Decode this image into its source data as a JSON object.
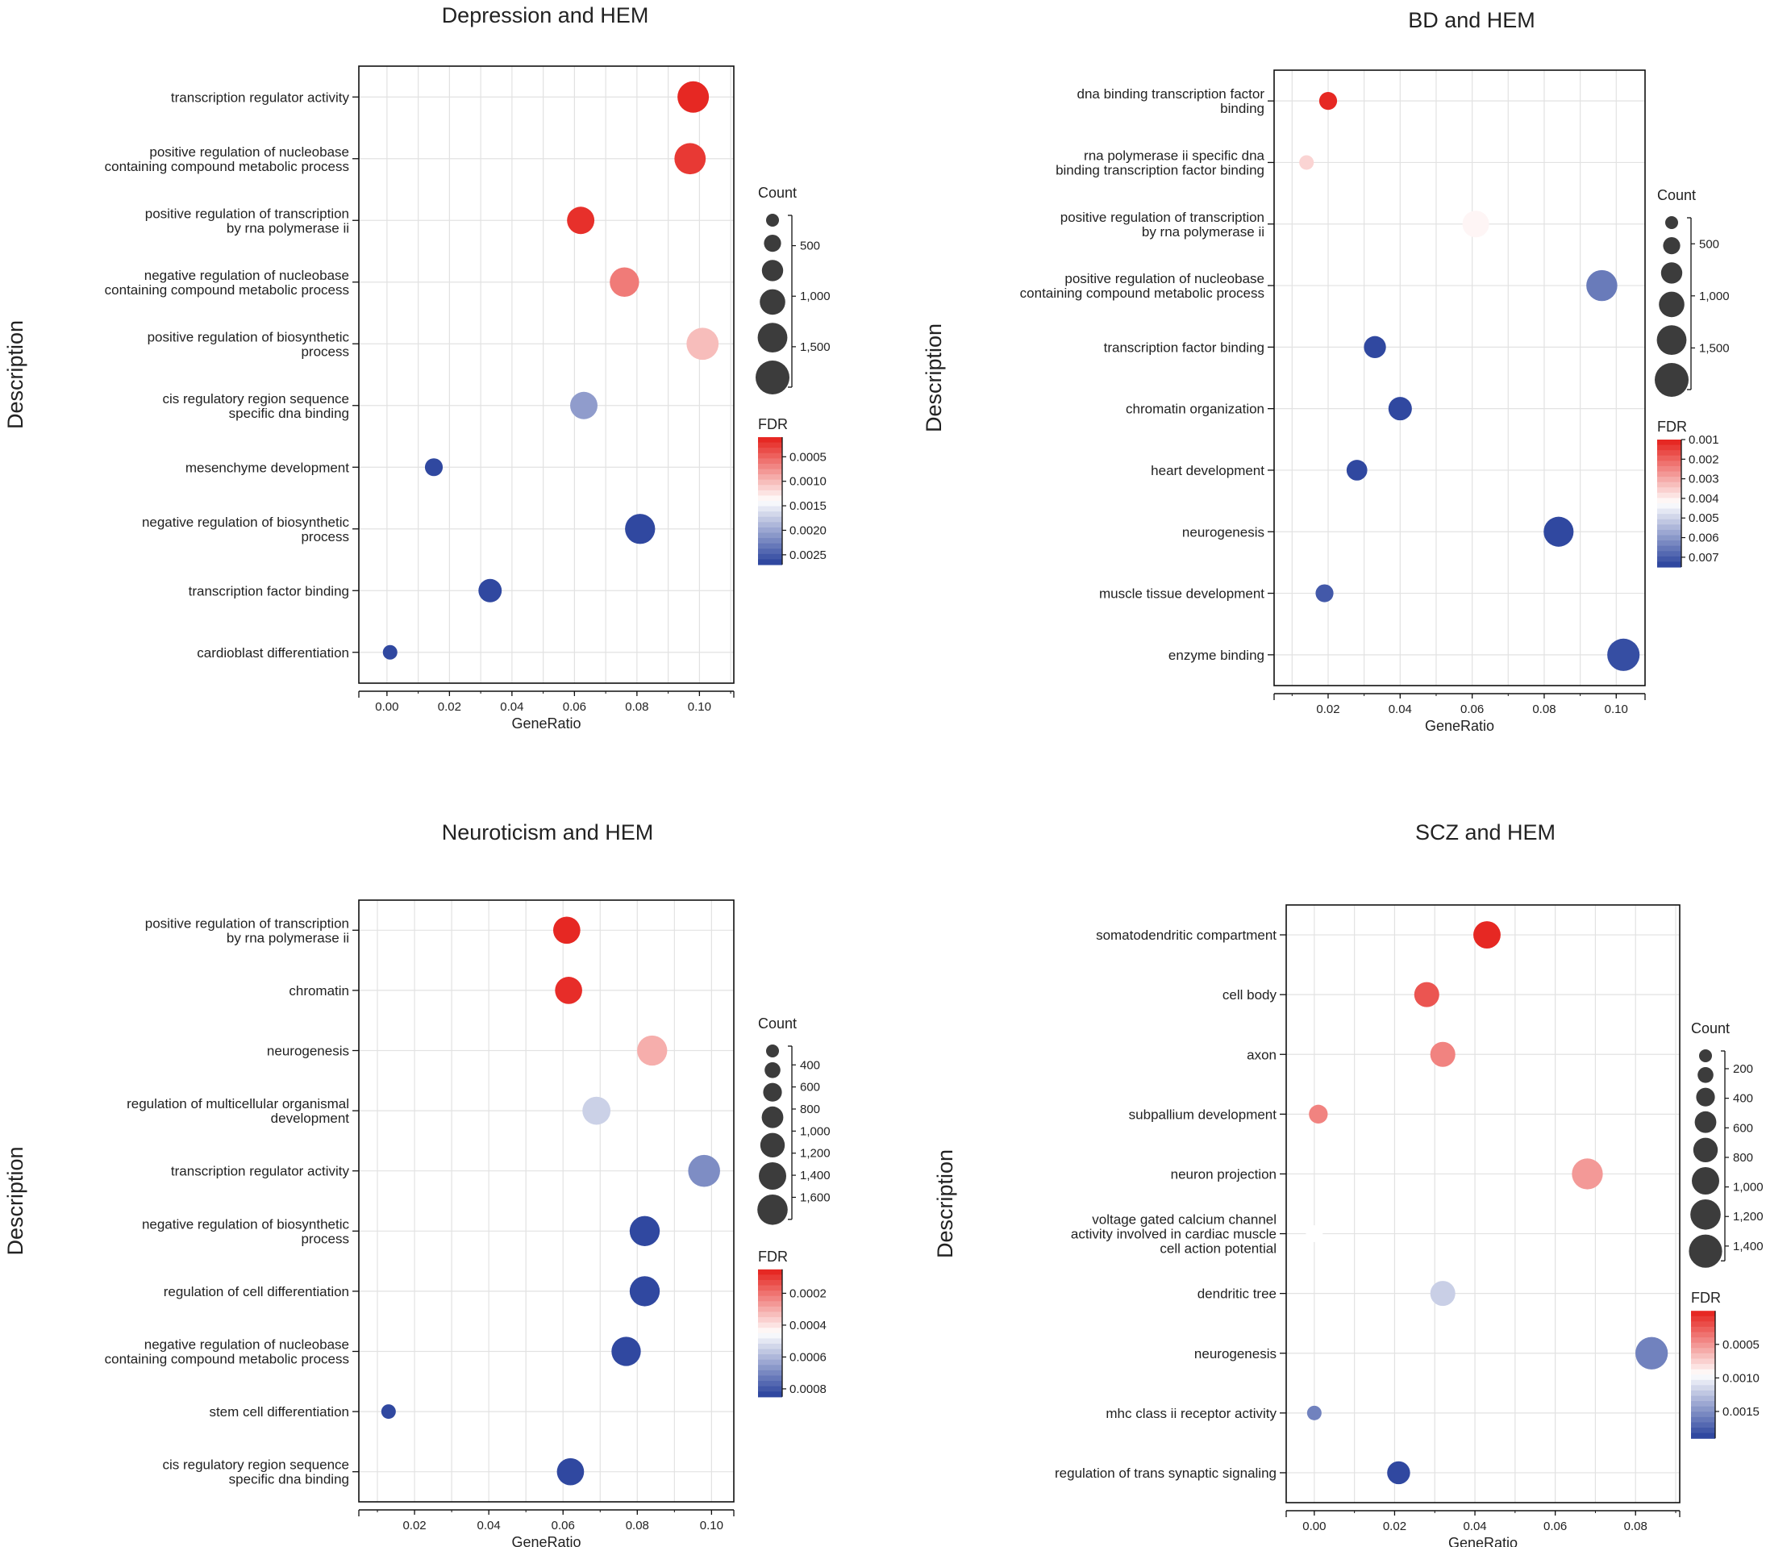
{
  "chart_data": [
    {
      "type": "scatter",
      "title": "Depression and HEM",
      "xlabel": "GeneRatio",
      "ylabel": "Description",
      "xlim": [
        -0.009,
        0.111
      ],
      "xticks": [
        0.0,
        0.02,
        0.04,
        0.06,
        0.08,
        0.1
      ],
      "xtick_labels": [
        "0.00",
        "0.02",
        "0.04",
        "0.06",
        "0.08",
        "0.10"
      ],
      "grid": true,
      "count_range": [
        200,
        1900
      ],
      "count_legend": {
        "title": "Count",
        "ticks": [
          500,
          1000,
          1500
        ],
        "labels": [
          "500",
          "1,000",
          "1,500"
        ],
        "dots": 6
      },
      "fdr_range": [
        0.0001,
        0.0027
      ],
      "fdr_legend": {
        "title": "FDR",
        "ticks": [
          0.0005,
          0.001,
          0.0015,
          0.002,
          0.0025
        ],
        "labels": [
          "0.0005",
          "0.0010",
          "0.0015",
          "0.0020",
          "0.0025"
        ]
      },
      "points": [
        {
          "label": [
            "transcription regulator activity"
          ],
          "x": 0.098,
          "count": 1500,
          "fdr": 0.0001
        },
        {
          "label": [
            "positive regulation of nucleobase",
            "containing compound metabolic process"
          ],
          "x": 0.097,
          "count": 1480,
          "fdr": 0.0002
        },
        {
          "label": [
            "positive regulation of transcription",
            "by rna polymerase ii"
          ],
          "x": 0.062,
          "count": 950,
          "fdr": 0.00015
        },
        {
          "label": [
            "negative regulation of nucleobase",
            "containing compound metabolic process"
          ],
          "x": 0.076,
          "count": 1200,
          "fdr": 0.0006
        },
        {
          "label": [
            "positive regulation of biosynthetic",
            "process"
          ],
          "x": 0.101,
          "count": 1600,
          "fdr": 0.001
        },
        {
          "label": [
            "cis regulatory region sequence",
            "specific dna binding"
          ],
          "x": 0.063,
          "count": 950,
          "fdr": 0.0021
        },
        {
          "label": [
            "mesenchyme development"
          ],
          "x": 0.015,
          "count": 250,
          "fdr": 0.0027
        },
        {
          "label": [
            "negative regulation of biosynthetic",
            "process"
          ],
          "x": 0.081,
          "count": 1300,
          "fdr": 0.0027
        },
        {
          "label": [
            "transcription factor binding"
          ],
          "x": 0.033,
          "count": 550,
          "fdr": 0.0027
        },
        {
          "label": [
            "cardioblast differentiation"
          ],
          "x": 0.001,
          "count": 200,
          "fdr": 0.0027
        }
      ]
    },
    {
      "type": "scatter",
      "title": "BD and HEM",
      "xlabel": "GeneRatio",
      "ylabel": "Description",
      "xlim": [
        0.005,
        0.108
      ],
      "xticks": [
        0.02,
        0.04,
        0.06,
        0.08,
        0.1
      ],
      "xtick_labels": [
        "0.02",
        "0.04",
        "0.06",
        "0.08",
        "0.10"
      ],
      "grid": true,
      "count_range": [
        250,
        1900
      ],
      "count_legend": {
        "title": "Count",
        "ticks": [
          500,
          1000,
          1500
        ],
        "labels": [
          "500",
          "1,000",
          "1,500"
        ],
        "dots": 6
      },
      "fdr_range": [
        0.001,
        0.0075
      ],
      "fdr_legend": {
        "title": "FDR",
        "ticks": [
          0.001,
          0.002,
          0.003,
          0.004,
          0.005,
          0.006,
          0.007
        ],
        "labels": [
          "0.001",
          "0.002",
          "0.003",
          "0.004",
          "0.005",
          "0.006",
          "0.007"
        ]
      },
      "points": [
        {
          "label": [
            "dna binding transcription factor",
            "binding"
          ],
          "x": 0.02,
          "count": 300,
          "fdr": 0.001
        },
        {
          "label": [
            "rna polymerase ii specific dna",
            "binding transcription factor binding"
          ],
          "x": 0.014,
          "count": 250,
          "fdr": 0.0036
        },
        {
          "label": [
            "positive regulation of transcription",
            "by rna polymerase ii"
          ],
          "x": 0.061,
          "count": 900,
          "fdr": 0.0041
        },
        {
          "label": [
            "positive regulation of nucleobase",
            "containing compound metabolic process"
          ],
          "x": 0.096,
          "count": 1450,
          "fdr": 0.0066
        },
        {
          "label": [
            "transcription factor binding"
          ],
          "x": 0.033,
          "count": 500,
          "fdr": 0.0075
        },
        {
          "label": [
            "chromatin organization"
          ],
          "x": 0.04,
          "count": 600,
          "fdr": 0.0075
        },
        {
          "label": [
            "heart development"
          ],
          "x": 0.028,
          "count": 420,
          "fdr": 0.0075
        },
        {
          "label": [
            "neurogenesis"
          ],
          "x": 0.084,
          "count": 1300,
          "fdr": 0.0075
        },
        {
          "label": [
            "muscle tissue development"
          ],
          "x": 0.019,
          "count": 300,
          "fdr": 0.0072
        },
        {
          "label": [
            "enzyme binding"
          ],
          "x": 0.102,
          "count": 1650,
          "fdr": 0.0074
        }
      ]
    },
    {
      "type": "scatter",
      "title": "Neuroticism and HEM",
      "xlabel": "GeneRatio",
      "ylabel": "Description",
      "xlim": [
        0.005,
        0.106
      ],
      "xticks": [
        0.02,
        0.04,
        0.06,
        0.08,
        0.1
      ],
      "xtick_labels": [
        "0.02",
        "0.04",
        "0.06",
        "0.08",
        "0.10"
      ],
      "grid": true,
      "count_range": [
        230,
        1800
      ],
      "count_legend": {
        "title": "Count",
        "ticks": [
          400,
          600,
          800,
          1000,
          1200,
          1400,
          1600
        ],
        "labels": [
          "400",
          "600",
          "800",
          "1,000",
          "1,200",
          "1,400",
          "1,600"
        ],
        "dots": 7
      },
      "fdr_range": [
        5e-05,
        0.00085
      ],
      "fdr_legend": {
        "title": "FDR",
        "ticks": [
          0.0002,
          0.0004,
          0.0006,
          0.0008
        ],
        "labels": [
          "0.0002",
          "0.0004",
          "0.0006",
          "0.0008"
        ]
      },
      "points": [
        {
          "label": [
            "positive regulation of transcription",
            "by rna polymerase ii"
          ],
          "x": 0.061,
          "count": 900,
          "fdr": 5e-05
        },
        {
          "label": [
            "chromatin"
          ],
          "x": 0.0615,
          "count": 900,
          "fdr": 6e-05
        },
        {
          "label": [
            "neurogenesis"
          ],
          "x": 0.084,
          "count": 1250,
          "fdr": 0.0003
        },
        {
          "label": [
            "regulation of multicellular organismal",
            "development"
          ],
          "x": 0.069,
          "count": 1000,
          "fdr": 0.00055
        },
        {
          "label": [
            "transcription regulator activity"
          ],
          "x": 0.098,
          "count": 1500,
          "fdr": 0.0007
        },
        {
          "label": [
            "negative regulation of biosynthetic",
            "process"
          ],
          "x": 0.082,
          "count": 1250,
          "fdr": 0.00085
        },
        {
          "label": [
            "regulation of cell differentiation"
          ],
          "x": 0.082,
          "count": 1250,
          "fdr": 0.00085
        },
        {
          "label": [
            "negative regulation of nucleobase",
            "containing compound metabolic process"
          ],
          "x": 0.077,
          "count": 1150,
          "fdr": 0.00085
        },
        {
          "label": [
            "stem cell differentiation"
          ],
          "x": 0.013,
          "count": 230,
          "fdr": 0.00085
        },
        {
          "label": [
            "cis regulatory region sequence",
            "specific dna binding"
          ],
          "x": 0.062,
          "count": 900,
          "fdr": 0.00085
        }
      ]
    },
    {
      "type": "scatter",
      "title": "SCZ and HEM",
      "xlabel": "GeneRatio",
      "ylabel": "Description",
      "xlim": [
        -0.007,
        0.091
      ],
      "xticks": [
        0.0,
        0.02,
        0.04,
        0.06,
        0.08
      ],
      "xtick_labels": [
        "0.00",
        "0.02",
        "0.04",
        "0.06",
        "0.08"
      ],
      "grid": true,
      "count_range": [
        80,
        1500
      ],
      "count_legend": {
        "title": "Count",
        "ticks": [
          200,
          400,
          600,
          800,
          1000,
          1200,
          1400
        ],
        "labels": [
          "200",
          "400",
          "600",
          "800",
          "1,000",
          "1,200",
          "1,400"
        ],
        "dots": 8
      },
      "fdr_range": [
        0.0,
        0.0019
      ],
      "fdr_legend": {
        "title": "FDR",
        "ticks": [
          0.0005,
          0.001,
          0.0015
        ],
        "labels": [
          "0.0005",
          "0.0010",
          "0.0015"
        ]
      },
      "points": [
        {
          "label": [
            "somatodendritic compartment"
          ],
          "x": 0.043,
          "count": 700,
          "fdr": 0.0
        },
        {
          "label": [
            "cell body"
          ],
          "x": 0.028,
          "count": 500,
          "fdr": 0.0002
        },
        {
          "label": [
            "axon"
          ],
          "x": 0.032,
          "count": 500,
          "fdr": 0.0004
        },
        {
          "label": [
            "subpallium development"
          ],
          "x": 0.001,
          "count": 150,
          "fdr": 0.0004
        },
        {
          "label": [
            "neuron projection"
          ],
          "x": 0.068,
          "count": 1100,
          "fdr": 0.0005
        },
        {
          "label": [
            "voltage gated calcium channel",
            "activity involved in cardiac muscle",
            "cell action potential"
          ],
          "x": 0.0,
          "count": 100,
          "fdr": 0.00095
        },
        {
          "label": [
            "dendritic tree"
          ],
          "x": 0.032,
          "count": 500,
          "fdr": 0.0012
        },
        {
          "label": [
            "neurogenesis"
          ],
          "x": 0.084,
          "count": 1300,
          "fdr": 0.0016
        },
        {
          "label": [
            "mhc class ii receptor activity"
          ],
          "x": 0.0,
          "count": 80,
          "fdr": 0.0016
        },
        {
          "label": [
            "regulation of trans synaptic signaling"
          ],
          "x": 0.021,
          "count": 350,
          "fdr": 0.0019
        }
      ]
    }
  ]
}
